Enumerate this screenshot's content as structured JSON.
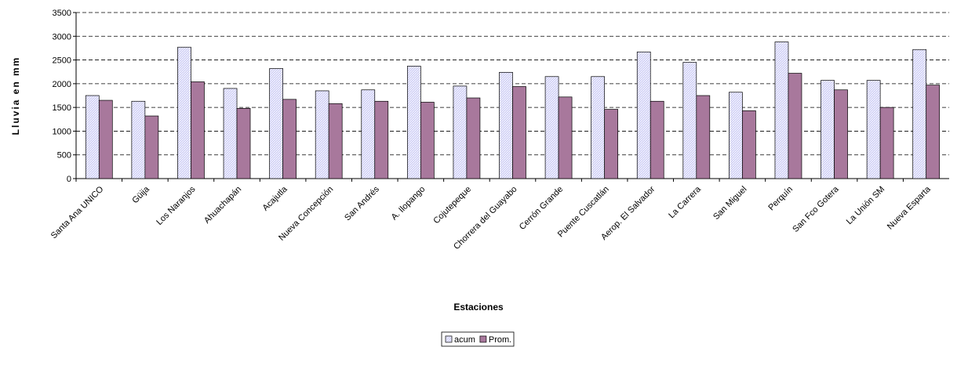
{
  "chart_data": {
    "type": "bar",
    "y_label": "Lluvia en mm",
    "x_label": "Estaciones",
    "categories": [
      "Santa Ana UNICO",
      "Güija",
      "Los Naranjos",
      "Ahuachapán",
      "Acajutla",
      "Nueva Concepción",
      "San Andrés",
      "A. Ilopango",
      "Cojutepeque",
      "Chorrera del Guayabo",
      "Cerrón Grande",
      "Puente Cuscatlán",
      "Aerop. El Salvador",
      "La Carrera",
      "San Miguel",
      "Perquín",
      "San Fco Gotera",
      "La Unión SM",
      "Nueva Esparta"
    ],
    "series": [
      {
        "name": "acum",
        "color": "#ccccf5",
        "values": [
          1750,
          1630,
          2770,
          1900,
          2320,
          1850,
          1870,
          2370,
          1950,
          2240,
          2150,
          2150,
          2670,
          2450,
          1820,
          2880,
          2070,
          2070,
          2720
        ]
      },
      {
        "name": "Prom.",
        "color": "#a8789c",
        "values": [
          1650,
          1320,
          2040,
          1480,
          1670,
          1580,
          1630,
          1610,
          1700,
          1940,
          1720,
          1460,
          1630,
          1750,
          1430,
          2220,
          1870,
          1500,
          1970
        ]
      }
    ],
    "ylim": [
      0,
      3500
    ],
    "yticks": [
      0,
      500,
      1000,
      1500,
      2000,
      2500,
      3000,
      3500
    ],
    "grid": true
  }
}
